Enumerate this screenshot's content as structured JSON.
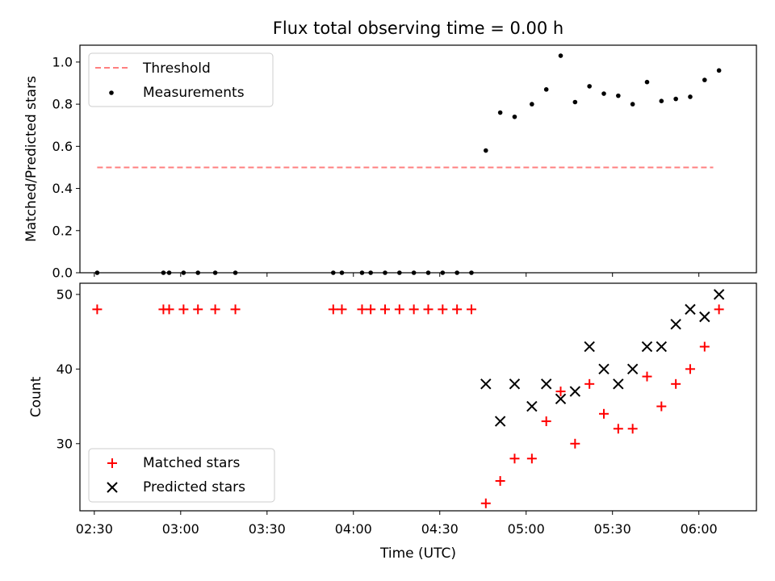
{
  "title": "Flux total observing time = 0.00 h",
  "colors": {
    "threshold": "#ff7f7f",
    "measurements": "#000000",
    "matched": "#ff0000",
    "predicted": "#000000"
  },
  "chart_data": [
    {
      "type": "scatter",
      "panel": "top",
      "title": "Flux total observing time = 0.00 h",
      "xlabel": "",
      "ylabel": "Matched/Predicted stars",
      "xlim": [
        "02:25",
        "06:20"
      ],
      "ylim": [
        0,
        1.08
      ],
      "yticks": [
        0.0,
        0.2,
        0.4,
        0.6,
        0.8,
        1.0
      ],
      "ytick_labels": [
        "0.0",
        "0.2",
        "0.4",
        "0.6",
        "0.8",
        "1.0"
      ],
      "legend": {
        "position": "top-left",
        "entries": [
          "Threshold",
          "Measurements"
        ]
      },
      "series": [
        {
          "name": "Threshold",
          "kind": "dashed-line",
          "color": "#ff7f7f",
          "x": [
            "02:31",
            "06:05"
          ],
          "y": [
            0.5,
            0.5
          ]
        },
        {
          "name": "Measurements",
          "kind": "dots",
          "color": "#000000",
          "x": [
            "02:31",
            "02:54",
            "02:56",
            "03:01",
            "03:06",
            "03:12",
            "03:19",
            "03:53",
            "03:56",
            "04:03",
            "04:06",
            "04:11",
            "04:16",
            "04:21",
            "04:26",
            "04:31",
            "04:36",
            "04:41",
            "04:46",
            "04:51",
            "04:56",
            "05:02",
            "05:07",
            "05:12",
            "05:17",
            "05:22",
            "05:27",
            "05:32",
            "05:37",
            "05:42",
            "05:47",
            "05:52",
            "05:57",
            "06:02",
            "06:07"
          ],
          "y": [
            0.0,
            0.0,
            0.0,
            0.0,
            0.0,
            0.0,
            0.0,
            0.0,
            0.0,
            0.0,
            0.0,
            0.0,
            0.0,
            0.0,
            0.0,
            0.0,
            0.0,
            0.0,
            0.58,
            0.76,
            0.74,
            0.8,
            0.87,
            1.03,
            0.81,
            0.885,
            0.85,
            0.84,
            0.8,
            0.905,
            0.815,
            0.825,
            0.835,
            0.915,
            0.96
          ]
        }
      ]
    },
    {
      "type": "scatter",
      "panel": "bottom",
      "xlabel": "Time (UTC)",
      "ylabel": "Count",
      "xlim": [
        "02:25",
        "06:20"
      ],
      "ylim": [
        21,
        51.5
      ],
      "yticks": [
        30,
        40,
        50
      ],
      "ytick_labels": [
        "30",
        "40",
        "50"
      ],
      "xticks": [
        "02:30",
        "03:00",
        "03:30",
        "04:00",
        "04:30",
        "05:00",
        "05:30",
        "06:00"
      ],
      "xtick_labels": [
        "02:30",
        "03:00",
        "03:30",
        "04:00",
        "04:30",
        "05:00",
        "05:30",
        "06:00"
      ],
      "legend": {
        "position": "bottom-left",
        "entries": [
          "Matched stars",
          "Predicted stars"
        ]
      },
      "series": [
        {
          "name": "Matched stars",
          "marker": "plus",
          "color": "#ff0000",
          "x": [
            "02:31",
            "02:54",
            "02:56",
            "03:01",
            "03:06",
            "03:12",
            "03:19",
            "03:53",
            "03:56",
            "04:03",
            "04:06",
            "04:11",
            "04:16",
            "04:21",
            "04:26",
            "04:31",
            "04:36",
            "04:41",
            "04:46",
            "04:51",
            "04:56",
            "05:02",
            "05:07",
            "05:12",
            "05:17",
            "05:22",
            "05:27",
            "05:32",
            "05:37",
            "05:42",
            "05:47",
            "05:52",
            "05:57",
            "06:02",
            "06:07"
          ],
          "y": [
            48,
            48,
            48,
            48,
            48,
            48,
            48,
            48,
            48,
            48,
            48,
            48,
            48,
            48,
            48,
            48,
            48,
            48,
            22,
            25,
            28,
            28,
            33,
            37,
            30,
            38,
            34,
            32,
            32,
            39,
            35,
            38,
            40,
            43,
            48
          ]
        },
        {
          "name": "Predicted stars",
          "marker": "x",
          "color": "#000000",
          "x": [
            "04:46",
            "04:51",
            "04:56",
            "05:02",
            "05:07",
            "05:12",
            "05:17",
            "05:22",
            "05:27",
            "05:32",
            "05:37",
            "05:42",
            "05:47",
            "05:52",
            "05:57",
            "06:02",
            "06:07"
          ],
          "y": [
            38,
            33,
            38,
            35,
            38,
            36,
            37,
            43,
            40,
            38,
            40,
            43,
            43,
            46,
            48,
            47,
            50
          ]
        }
      ]
    }
  ]
}
